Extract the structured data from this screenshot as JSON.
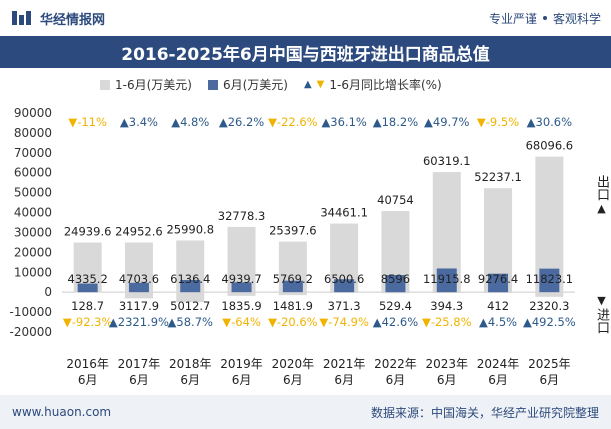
{
  "header": {
    "brand": "华经情报网",
    "tags": [
      "专业严谨",
      "客观科学"
    ],
    "title": "2016-2025年6月中国与西班牙进出口商品总值"
  },
  "legend": {
    "total": "1-6月(万美元)",
    "month": "6月(万美元)",
    "growth": "1-6月同比增长率(%)"
  },
  "side": {
    "export": "出口",
    "import": "进口"
  },
  "footer": {
    "website": "www.huaon.com",
    "source": "数据来源：中国海关，华经产业研究院整理"
  },
  "colors": {
    "total_bar": "#d9d9d9",
    "month_bar": "#4a6aa0",
    "growth_up": "#2d5a8a",
    "growth_down": "#f0b400"
  },
  "chart_data": {
    "type": "bar",
    "categories": [
      "2016年\n6月",
      "2017年\n6月",
      "2018年\n6月",
      "2019年\n6月",
      "2020年\n6月",
      "2021年\n6月",
      "2022年\n6月",
      "2023年\n6月",
      "2024年\n6月",
      "2025年\n6月"
    ],
    "ylim": [
      -20000,
      90000
    ],
    "yticks": [
      -20000,
      -10000,
      0,
      10000,
      20000,
      30000,
      40000,
      50000,
      60000,
      70000,
      80000,
      90000
    ],
    "series": [
      {
        "name": "1-6月(万美元)",
        "role": "export_total",
        "values": [
          24939.6,
          24952.6,
          25990.8,
          32778.3,
          25397.6,
          34461.1,
          40754,
          60319.1,
          52237.1,
          68096.6
        ],
        "labels": [
          "24939.6",
          "24952.6",
          "25990.8",
          "32778.3",
          "25397.6",
          "34461.1",
          "40754",
          "60319.1",
          "52237.1",
          "68096.6"
        ]
      },
      {
        "name": "6月(万美元)",
        "role": "export_month",
        "values": [
          4335.2,
          4703.6,
          6136.4,
          4939.7,
          5769.2,
          6500.6,
          8596,
          11915.8,
          9276.4,
          11823.1
        ],
        "labels": [
          "4335.2",
          "4703.6",
          "6136.4",
          "4939.7",
          "5769.2",
          "6500.6",
          "8596",
          "11915.8",
          "9276.4",
          "11823.1"
        ]
      },
      {
        "name": "1-6月(万美元)",
        "role": "import_total",
        "values": [
          -128.7,
          -3117.9,
          -5012.7,
          -1835.9,
          -1481.9,
          -371.3,
          -529.4,
          -394.3,
          -412,
          -2320.3
        ],
        "labels": [
          "128.7",
          "3117.9",
          "5012.7",
          "1835.9",
          "1481.9",
          "371.3",
          "529.4",
          "394.3",
          "412",
          "2320.3"
        ]
      },
      {
        "name": "1-6月同比增长率(%)",
        "role": "export_growth",
        "values": [
          -11,
          3.4,
          4.8,
          26.2,
          -22.6,
          36.1,
          18.2,
          49.7,
          -9.5,
          30.6
        ],
        "labels": [
          "-11%",
          "3.4%",
          "4.8%",
          "26.2%",
          "-22.6%",
          "36.1%",
          "18.2%",
          "49.7%",
          "-9.5%",
          "30.6%"
        ]
      },
      {
        "name": "1-6月同比增长率(%)",
        "role": "import_growth",
        "values": [
          -92.3,
          2321.9,
          58.7,
          -64,
          -20.6,
          -74.9,
          42.6,
          -25.8,
          4.5,
          492.5
        ],
        "labels": [
          "-92.3%",
          "2321.9%",
          "58.7%",
          "-64%",
          "-20.6%",
          "-74.9%",
          "42.6%",
          "-25.8%",
          "4.5%",
          "492.5%"
        ]
      }
    ]
  }
}
